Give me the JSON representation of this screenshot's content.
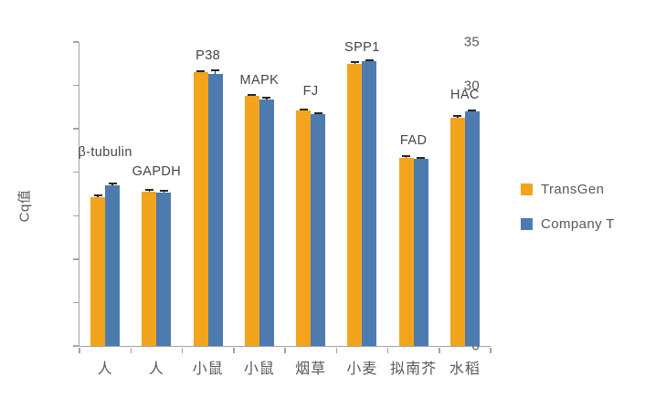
{
  "chart_data": {
    "type": "bar",
    "title": "",
    "xlabel": "",
    "ylabel": "Cq值",
    "ylim": [
      0,
      35
    ],
    "y_ticks": [
      0,
      5,
      10,
      15,
      20,
      25,
      30,
      35
    ],
    "grid": false,
    "legend_position": "right",
    "categories": [
      "人",
      "人",
      "小鼠",
      "小鼠",
      "烟草",
      "小麦",
      "拟南芥",
      "水稻"
    ],
    "group_labels": [
      "β-tubulin",
      "GAPDH",
      "P38",
      "MAPK",
      "FJ",
      "SPP1",
      "FAD",
      "HAC"
    ],
    "label_gap": [
      26,
      12,
      8,
      8,
      12,
      6,
      9,
      9
    ],
    "series": [
      {
        "name": "TransGen",
        "color": "#F2A41C",
        "values": [
          17.1,
          17.8,
          31.5,
          28.8,
          27.1,
          32.5,
          21.7,
          26.3
        ],
        "errors": [
          0.2,
          0.15,
          0.15,
          0.15,
          0.1,
          0.15,
          0.2,
          0.15
        ]
      },
      {
        "name": "Company T",
        "color": "#4E7BAF",
        "values": [
          18.5,
          17.7,
          31.3,
          28.4,
          26.7,
          32.8,
          21.5,
          27.0
        ],
        "errors": [
          0.2,
          0.15,
          0.4,
          0.15,
          0.15,
          0.1,
          0.2,
          0.15
        ]
      }
    ]
  },
  "colors": {
    "background": "#FFFFFF",
    "axis": "#A3A3A3",
    "tick_text": "#595959",
    "gene_label_text": "#454545",
    "error_bar": "#262626"
  }
}
